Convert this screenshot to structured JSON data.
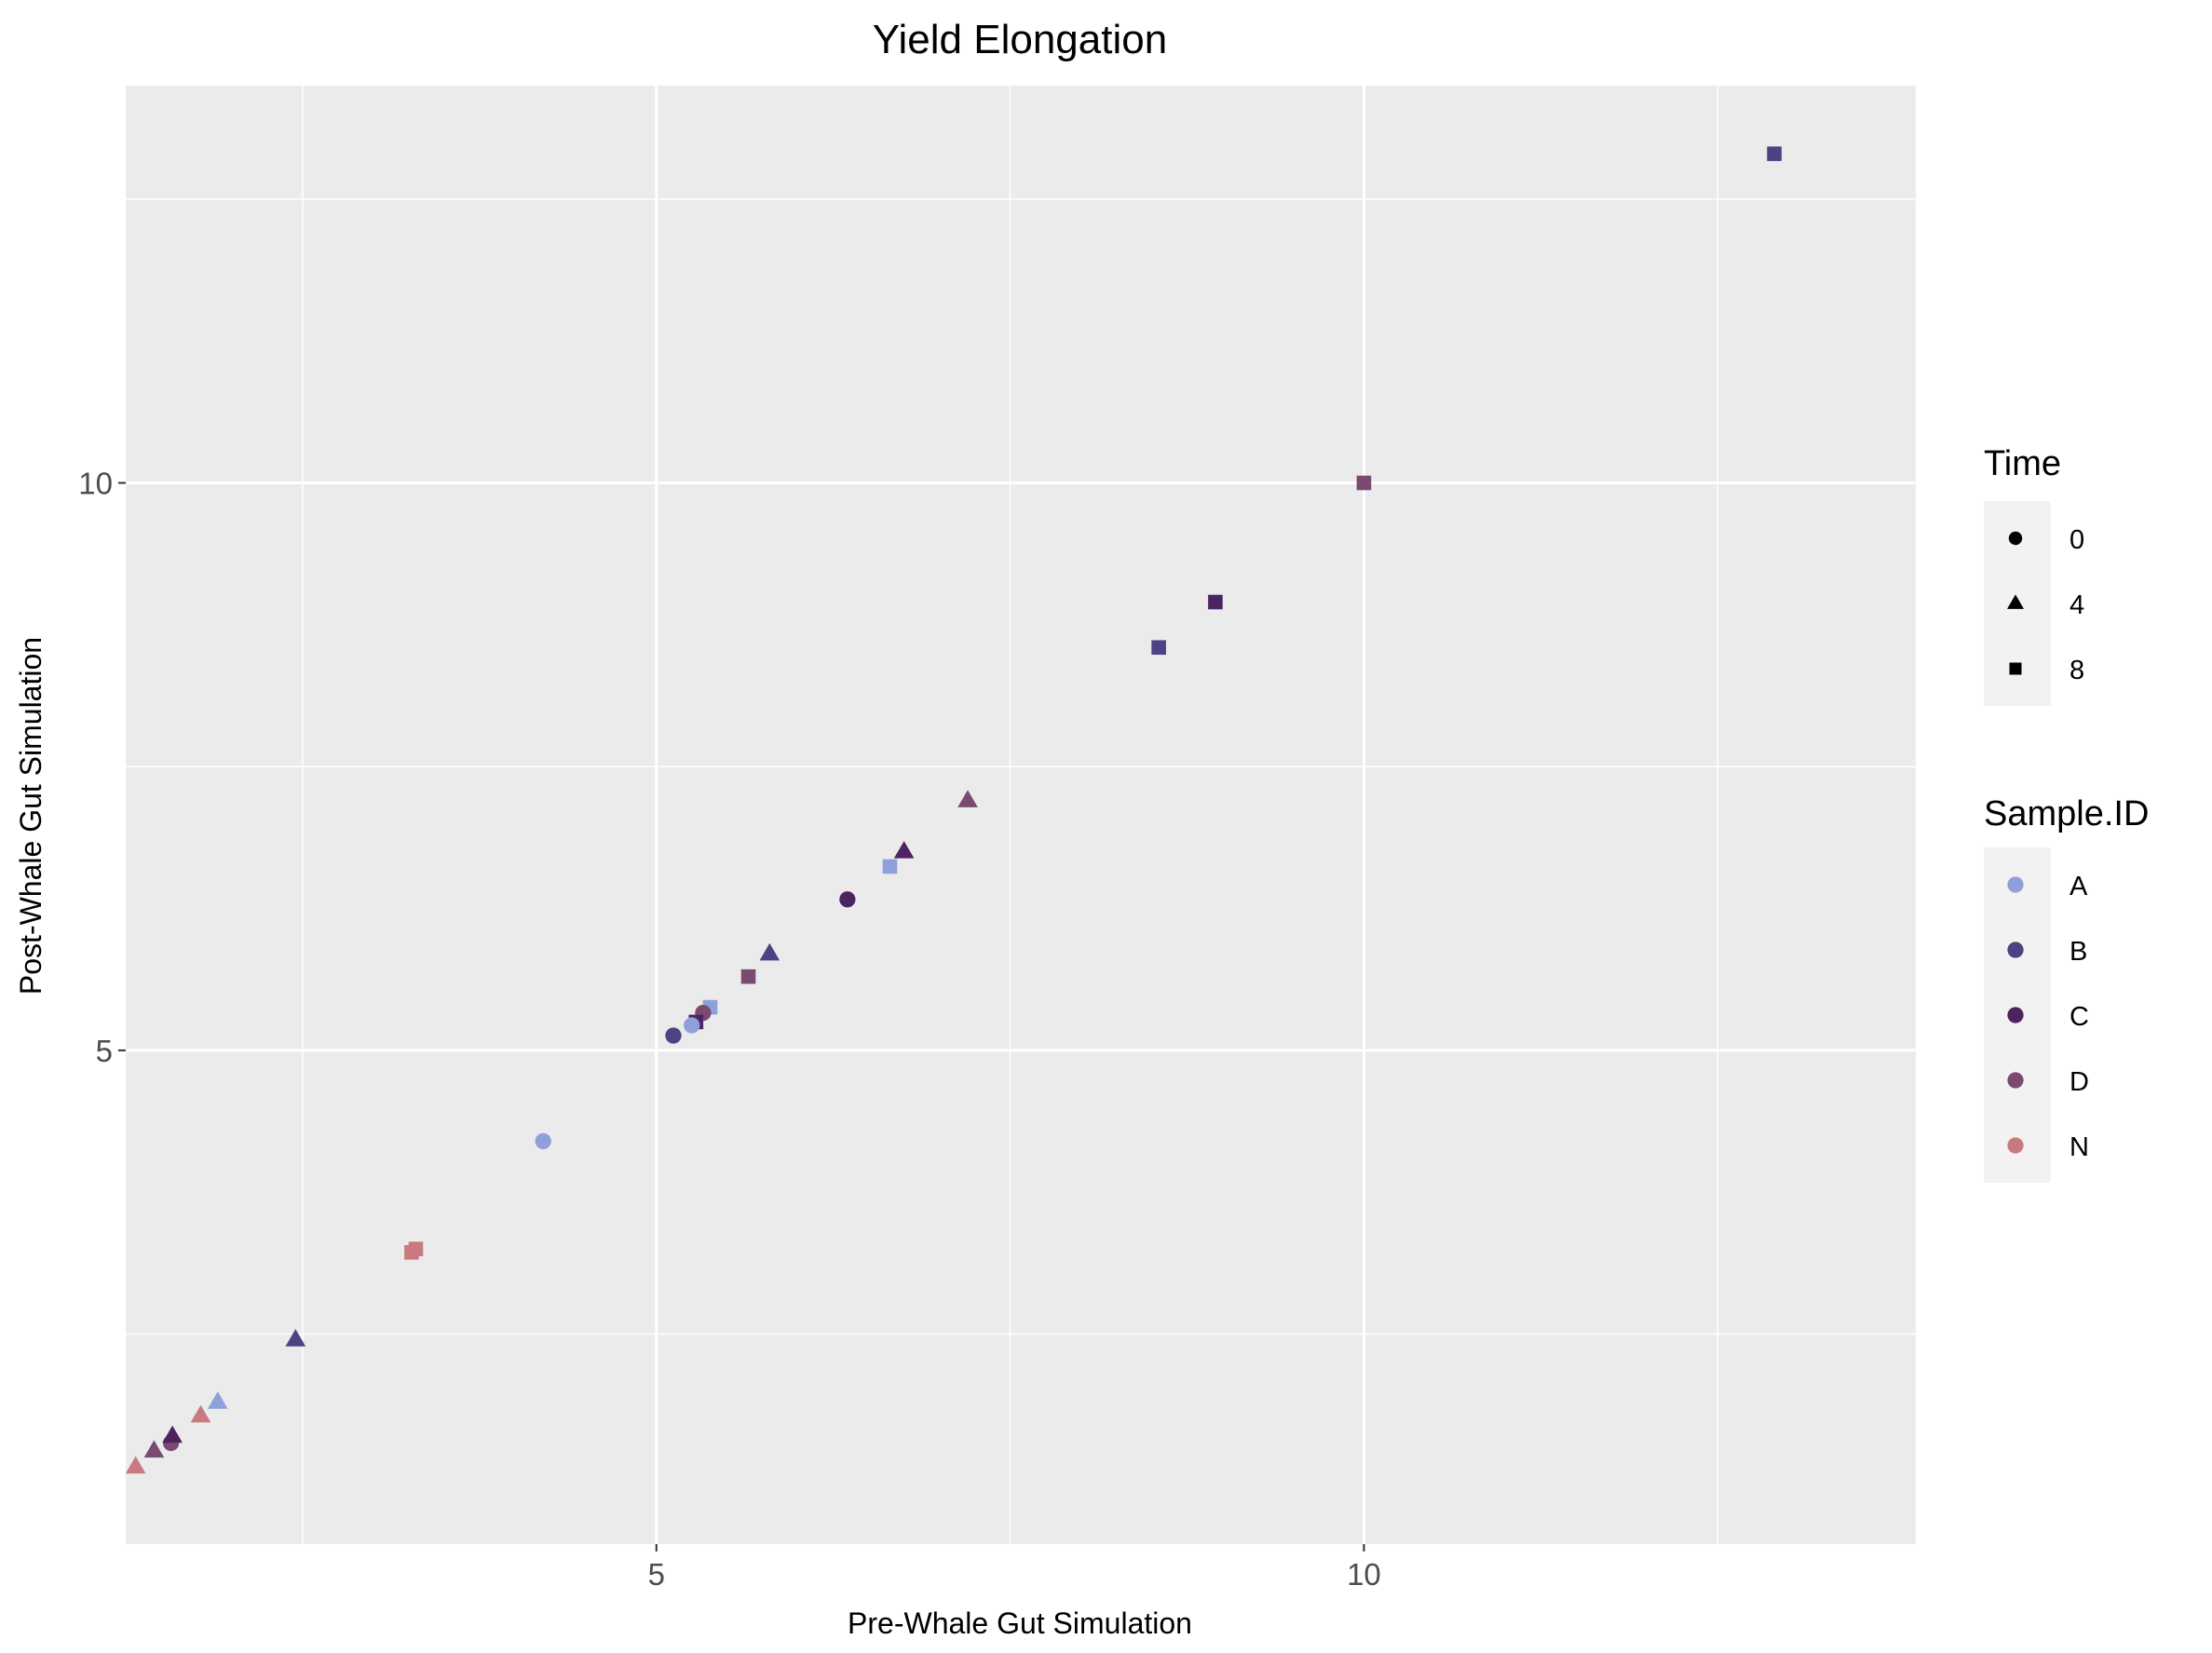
{
  "chart_data": {
    "type": "scatter",
    "title": "Yield Elongation",
    "xlabel": "Pre-Whale Gut Simulation",
    "ylabel": "Post-Whale Gut Simulation",
    "xlim": [
      1.25,
      13.9
    ],
    "ylim": [
      0.65,
      13.5
    ],
    "x_ticks": [
      5,
      10
    ],
    "y_ticks": [
      5,
      10
    ],
    "x_tick_labels": [
      "5",
      "10"
    ],
    "y_tick_labels": [
      "5",
      "10"
    ],
    "x_minor_gridlines": [
      2.5,
      7.5,
      12.5
    ],
    "y_minor_gridlines": [
      2.5,
      7.5,
      12.5
    ],
    "grid": true,
    "panel_color": "#EBEBEB",
    "grid_color": "#FFFFFF",
    "legend_position": "right",
    "legends": [
      {
        "title": "Time",
        "type": "shape",
        "items": [
          {
            "label": "0",
            "shape": "circle"
          },
          {
            "label": "4",
            "shape": "triangle"
          },
          {
            "label": "8",
            "shape": "square"
          }
        ]
      },
      {
        "title": "Sample.ID",
        "type": "color",
        "items": [
          {
            "label": "A",
            "color": "#8DA0DB"
          },
          {
            "label": "B",
            "color": "#4B4383"
          },
          {
            "label": "C",
            "color": "#4C2461"
          },
          {
            "label": "D",
            "color": "#7A4A70"
          },
          {
            "label": "N",
            "color": "#C97A80"
          }
        ]
      }
    ],
    "points": [
      {
        "x": 12.9,
        "y": 12.9,
        "time": "8",
        "sample": "B"
      },
      {
        "x": 10.0,
        "y": 10.0,
        "time": "8",
        "sample": "D"
      },
      {
        "x": 8.95,
        "y": 8.95,
        "time": "8",
        "sample": "C"
      },
      {
        "x": 8.55,
        "y": 8.55,
        "time": "8",
        "sample": "B"
      },
      {
        "x": 7.2,
        "y": 7.2,
        "time": "4",
        "sample": "D"
      },
      {
        "x": 6.75,
        "y": 6.75,
        "time": "4",
        "sample": "C"
      },
      {
        "x": 6.65,
        "y": 6.62,
        "time": "8",
        "sample": "A"
      },
      {
        "x": 6.35,
        "y": 6.33,
        "time": "0",
        "sample": "C"
      },
      {
        "x": 5.8,
        "y": 5.85,
        "time": "4",
        "sample": "B"
      },
      {
        "x": 5.65,
        "y": 5.65,
        "time": "8",
        "sample": "D"
      },
      {
        "x": 5.38,
        "y": 5.38,
        "time": "8",
        "sample": "A"
      },
      {
        "x": 5.33,
        "y": 5.33,
        "time": "0",
        "sample": "D"
      },
      {
        "x": 5.28,
        "y": 5.25,
        "time": "8",
        "sample": "C"
      },
      {
        "x": 5.25,
        "y": 5.22,
        "time": "0",
        "sample": "A"
      },
      {
        "x": 5.12,
        "y": 5.13,
        "time": "0",
        "sample": "B"
      },
      {
        "x": 4.2,
        "y": 4.2,
        "time": "0",
        "sample": "A"
      },
      {
        "x": 3.3,
        "y": 3.25,
        "time": "8",
        "sample": "N"
      },
      {
        "x": 3.27,
        "y": 3.22,
        "time": "8",
        "sample": "N"
      },
      {
        "x": 2.45,
        "y": 2.45,
        "time": "4",
        "sample": "B"
      },
      {
        "x": 1.9,
        "y": 1.9,
        "time": "4",
        "sample": "A"
      },
      {
        "x": 1.78,
        "y": 1.78,
        "time": "4",
        "sample": "N"
      },
      {
        "x": 1.57,
        "y": 1.54,
        "time": "0",
        "sample": "D"
      },
      {
        "x": 1.58,
        "y": 1.6,
        "time": "4",
        "sample": "C"
      },
      {
        "x": 1.45,
        "y": 1.47,
        "time": "4",
        "sample": "D"
      },
      {
        "x": 1.32,
        "y": 1.33,
        "time": "4",
        "sample": "N"
      }
    ]
  }
}
